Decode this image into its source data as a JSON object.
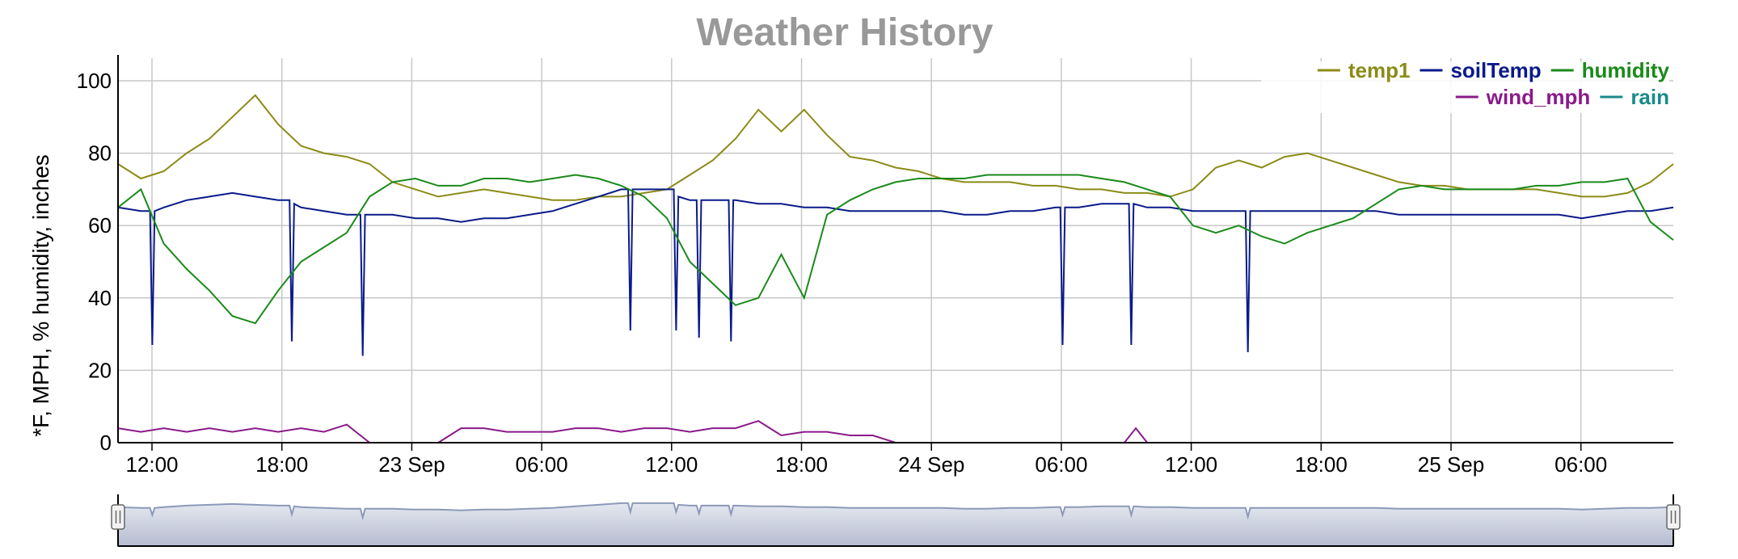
{
  "chart_data": {
    "type": "line",
    "title": "Weather History",
    "ylabel": "*F, MPH, % humidity, inches",
    "xlabel": "",
    "ylim": [
      0,
      100
    ],
    "yticks": [
      "0",
      "20",
      "40",
      "60",
      "80",
      "100"
    ],
    "xtick_labels": [
      "12:00",
      "18:00",
      "23 Sep",
      "06:00",
      "12:00",
      "18:00",
      "24 Sep",
      "06:00",
      "12:00",
      "18:00",
      "25 Sep",
      "06:00"
    ],
    "grid": true,
    "legend_position": "top-right",
    "series": [
      {
        "name": "temp1",
        "color": "#8b8b17",
        "points": [
          [
            0,
            77
          ],
          [
            1,
            73
          ],
          [
            2,
            75
          ],
          [
            3,
            80
          ],
          [
            4,
            84
          ],
          [
            5,
            90
          ],
          [
            6,
            96
          ],
          [
            7,
            88
          ],
          [
            8,
            82
          ],
          [
            9,
            80
          ],
          [
            10,
            79
          ],
          [
            11,
            77
          ],
          [
            12,
            72
          ],
          [
            13,
            70
          ],
          [
            14,
            68
          ],
          [
            15,
            69
          ],
          [
            16,
            70
          ],
          [
            17,
            69
          ],
          [
            18,
            68
          ],
          [
            19,
            67
          ],
          [
            20,
            67
          ],
          [
            21,
            68
          ],
          [
            22,
            68
          ],
          [
            23,
            69
          ],
          [
            24,
            70
          ],
          [
            25,
            74
          ],
          [
            26,
            78
          ],
          [
            27,
            84
          ],
          [
            28,
            92
          ],
          [
            29,
            86
          ],
          [
            30,
            92
          ],
          [
            31,
            85
          ],
          [
            32,
            79
          ],
          [
            33,
            78
          ],
          [
            34,
            76
          ],
          [
            35,
            75
          ],
          [
            36,
            73
          ],
          [
            37,
            72
          ],
          [
            38,
            72
          ],
          [
            39,
            72
          ],
          [
            40,
            71
          ],
          [
            41,
            71
          ],
          [
            42,
            70
          ],
          [
            43,
            70
          ],
          [
            44,
            69
          ],
          [
            45,
            69
          ],
          [
            46,
            68
          ],
          [
            47,
            70
          ],
          [
            48,
            76
          ],
          [
            49,
            78
          ],
          [
            50,
            76
          ],
          [
            51,
            79
          ],
          [
            52,
            80
          ],
          [
            53,
            78
          ],
          [
            54,
            76
          ],
          [
            55,
            74
          ],
          [
            56,
            72
          ],
          [
            57,
            71
          ],
          [
            58,
            71
          ],
          [
            59,
            70
          ],
          [
            60,
            70
          ],
          [
            61,
            70
          ],
          [
            62,
            70
          ],
          [
            63,
            69
          ],
          [
            64,
            68
          ],
          [
            65,
            68
          ],
          [
            66,
            69
          ],
          [
            67,
            72
          ],
          [
            68,
            77
          ]
        ]
      },
      {
        "name": "soilTemp",
        "color": "#0a1a8a",
        "points": [
          [
            0,
            65
          ],
          [
            1,
            64
          ],
          [
            1.4,
            64
          ],
          [
            1.5,
            27
          ],
          [
            1.6,
            64
          ],
          [
            2,
            65
          ],
          [
            3,
            67
          ],
          [
            4,
            68
          ],
          [
            5,
            69
          ],
          [
            6,
            68
          ],
          [
            7,
            67
          ],
          [
            7.5,
            67
          ],
          [
            7.6,
            28
          ],
          [
            7.7,
            66
          ],
          [
            8,
            65
          ],
          [
            9,
            64
          ],
          [
            10,
            63
          ],
          [
            10.6,
            63
          ],
          [
            10.7,
            24
          ],
          [
            10.8,
            63
          ],
          [
            11,
            63
          ],
          [
            12,
            63
          ],
          [
            13,
            62
          ],
          [
            14,
            62
          ],
          [
            15,
            61
          ],
          [
            16,
            62
          ],
          [
            17,
            62
          ],
          [
            18,
            63
          ],
          [
            19,
            64
          ],
          [
            20,
            66
          ],
          [
            21,
            68
          ],
          [
            22,
            70
          ],
          [
            22.3,
            70
          ],
          [
            22.4,
            31
          ],
          [
            22.5,
            70
          ],
          [
            23,
            70
          ],
          [
            24,
            70
          ],
          [
            24.3,
            70
          ],
          [
            24.4,
            31
          ],
          [
            24.5,
            68
          ],
          [
            25,
            67
          ],
          [
            25.3,
            67
          ],
          [
            25.4,
            29
          ],
          [
            25.5,
            67
          ],
          [
            26,
            67
          ],
          [
            26.7,
            67
          ],
          [
            26.8,
            28
          ],
          [
            26.9,
            67
          ],
          [
            27,
            67
          ],
          [
            28,
            66
          ],
          [
            29,
            66
          ],
          [
            30,
            65
          ],
          [
            31,
            65
          ],
          [
            32,
            64
          ],
          [
            33,
            64
          ],
          [
            34,
            64
          ],
          [
            35,
            64
          ],
          [
            36,
            64
          ],
          [
            37,
            63
          ],
          [
            38,
            63
          ],
          [
            39,
            64
          ],
          [
            40,
            64
          ],
          [
            41,
            65
          ],
          [
            41.2,
            65
          ],
          [
            41.3,
            27
          ],
          [
            41.4,
            65
          ],
          [
            42,
            65
          ],
          [
            43,
            66
          ],
          [
            44,
            66
          ],
          [
            44.2,
            66
          ],
          [
            44.3,
            27
          ],
          [
            44.4,
            66
          ],
          [
            45,
            65
          ],
          [
            46,
            65
          ],
          [
            47,
            64
          ],
          [
            48,
            64
          ],
          [
            49,
            64
          ],
          [
            49.3,
            64
          ],
          [
            49.4,
            25
          ],
          [
            49.5,
            64
          ],
          [
            50,
            64
          ],
          [
            51,
            64
          ],
          [
            52,
            64
          ],
          [
            53,
            64
          ],
          [
            54,
            64
          ],
          [
            55,
            64
          ],
          [
            56,
            63
          ],
          [
            57,
            63
          ],
          [
            58,
            63
          ],
          [
            59,
            63
          ],
          [
            60,
            63
          ],
          [
            61,
            63
          ],
          [
            62,
            63
          ],
          [
            63,
            63
          ],
          [
            64,
            62
          ],
          [
            65,
            63
          ],
          [
            66,
            64
          ],
          [
            67,
            64
          ],
          [
            68,
            65
          ]
        ]
      },
      {
        "name": "humidity",
        "color": "#1a8a1a",
        "points": [
          [
            0,
            65
          ],
          [
            1,
            70
          ],
          [
            2,
            55
          ],
          [
            3,
            48
          ],
          [
            4,
            42
          ],
          [
            5,
            35
          ],
          [
            6,
            33
          ],
          [
            7,
            42
          ],
          [
            8,
            50
          ],
          [
            9,
            54
          ],
          [
            10,
            58
          ],
          [
            11,
            68
          ],
          [
            12,
            72
          ],
          [
            13,
            73
          ],
          [
            14,
            71
          ],
          [
            15,
            71
          ],
          [
            16,
            73
          ],
          [
            17,
            73
          ],
          [
            18,
            72
          ],
          [
            19,
            73
          ],
          [
            20,
            74
          ],
          [
            21,
            73
          ],
          [
            22,
            71
          ],
          [
            23,
            68
          ],
          [
            24,
            62
          ],
          [
            25,
            50
          ],
          [
            26,
            44
          ],
          [
            27,
            38
          ],
          [
            28,
            40
          ],
          [
            29,
            52
          ],
          [
            30,
            40
          ],
          [
            31,
            63
          ],
          [
            32,
            67
          ],
          [
            33,
            70
          ],
          [
            34,
            72
          ],
          [
            35,
            73
          ],
          [
            36,
            73
          ],
          [
            37,
            73
          ],
          [
            38,
            74
          ],
          [
            39,
            74
          ],
          [
            40,
            74
          ],
          [
            41,
            74
          ],
          [
            42,
            74
          ],
          [
            43,
            73
          ],
          [
            44,
            72
          ],
          [
            45,
            70
          ],
          [
            46,
            68
          ],
          [
            47,
            60
          ],
          [
            48,
            58
          ],
          [
            49,
            60
          ],
          [
            50,
            57
          ],
          [
            51,
            55
          ],
          [
            52,
            58
          ],
          [
            53,
            60
          ],
          [
            54,
            62
          ],
          [
            55,
            66
          ],
          [
            56,
            70
          ],
          [
            57,
            71
          ],
          [
            58,
            70
          ],
          [
            59,
            70
          ],
          [
            60,
            70
          ],
          [
            61,
            70
          ],
          [
            62,
            71
          ],
          [
            63,
            71
          ],
          [
            64,
            72
          ],
          [
            65,
            72
          ],
          [
            66,
            73
          ],
          [
            67,
            61
          ],
          [
            68,
            56
          ]
        ]
      },
      {
        "name": "wind_mph",
        "color": "#8a1a8a",
        "points": [
          [
            0,
            4
          ],
          [
            1,
            3
          ],
          [
            2,
            4
          ],
          [
            3,
            3
          ],
          [
            4,
            4
          ],
          [
            5,
            3
          ],
          [
            6,
            4
          ],
          [
            7,
            3
          ],
          [
            8,
            4
          ],
          [
            9,
            3
          ],
          [
            10,
            5
          ],
          [
            11,
            0
          ],
          [
            12,
            0
          ],
          [
            13,
            0
          ],
          [
            14,
            0
          ],
          [
            15,
            4
          ],
          [
            16,
            4
          ],
          [
            17,
            3
          ],
          [
            18,
            3
          ],
          [
            19,
            3
          ],
          [
            20,
            4
          ],
          [
            21,
            4
          ],
          [
            22,
            3
          ],
          [
            23,
            4
          ],
          [
            24,
            4
          ],
          [
            25,
            3
          ],
          [
            26,
            4
          ],
          [
            27,
            4
          ],
          [
            28,
            6
          ],
          [
            29,
            2
          ],
          [
            30,
            3
          ],
          [
            31,
            3
          ],
          [
            32,
            2
          ],
          [
            33,
            2
          ],
          [
            34,
            0
          ],
          [
            35,
            0
          ],
          [
            36,
            0
          ],
          [
            37,
            0
          ],
          [
            38,
            0
          ],
          [
            39,
            0
          ],
          [
            40,
            0
          ],
          [
            41,
            0
          ],
          [
            42,
            0
          ],
          [
            43,
            0
          ],
          [
            44,
            0
          ],
          [
            44.5,
            4
          ],
          [
            45,
            0
          ],
          [
            46,
            0
          ],
          [
            47,
            0
          ],
          [
            48,
            0
          ],
          [
            49,
            0
          ],
          [
            50,
            0
          ],
          [
            51,
            0
          ],
          [
            52,
            0
          ],
          [
            53,
            0
          ],
          [
            54,
            0
          ],
          [
            55,
            0
          ],
          [
            56,
            0
          ],
          [
            57,
            0
          ],
          [
            58,
            0
          ],
          [
            59,
            0
          ],
          [
            60,
            0
          ],
          [
            61,
            0
          ],
          [
            62,
            0
          ],
          [
            63,
            0
          ],
          [
            64,
            0
          ],
          [
            65,
            0
          ],
          [
            66,
            0
          ],
          [
            67,
            0
          ],
          [
            68,
            0
          ]
        ]
      },
      {
        "name": "rain",
        "color": "#1a8a8a",
        "points": [
          [
            0,
            0
          ],
          [
            68,
            0
          ]
        ]
      }
    ]
  }
}
